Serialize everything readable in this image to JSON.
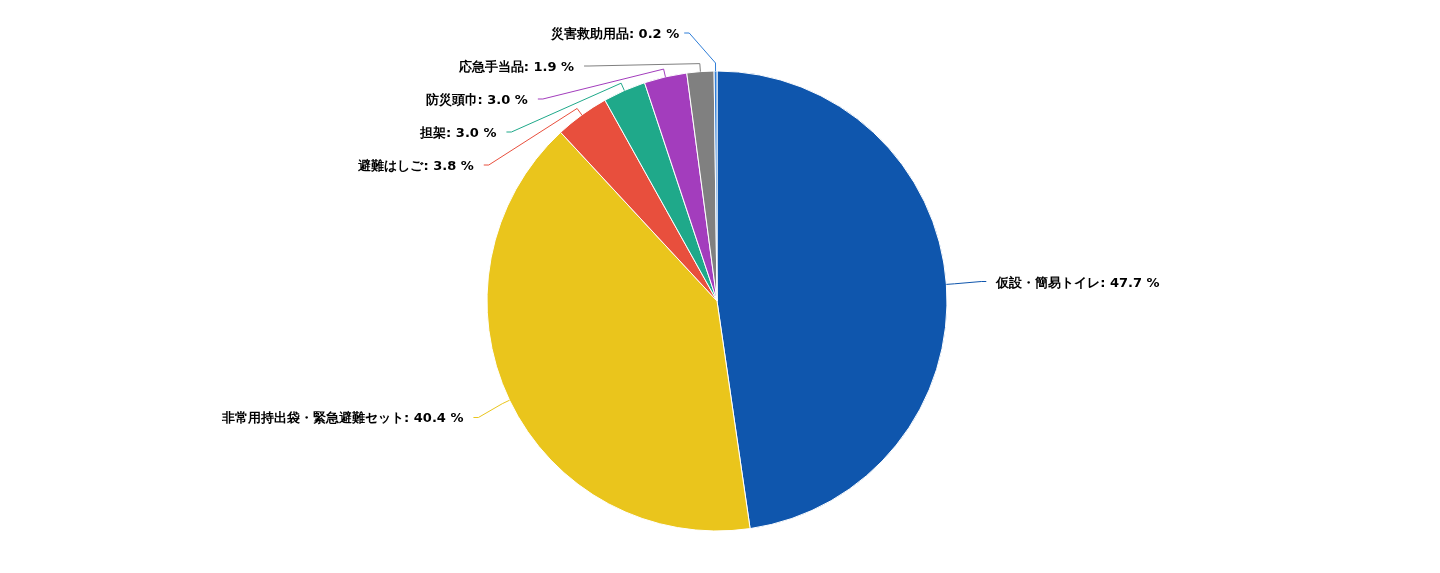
{
  "chart_data": {
    "type": "pie",
    "categories": [
      "仮設・簡易トイレ",
      "非常用持出袋・緊急避難セット",
      "避難はしご",
      "担架",
      "防災頭巾",
      "応急手当品",
      "災害救助用品"
    ],
    "values": [
      47.7,
      40.4,
      3.8,
      3.0,
      3.0,
      1.9,
      0.2
    ],
    "value_labels": [
      ": 47.7 %",
      ": 40.4 %",
      ": 3.8 %",
      ": 3.0 %",
      ": 3.0 %",
      ": 1.9 %",
      ": 0.2 %"
    ],
    "colors": [
      "#0f56ad",
      "#eac51c",
      "#e84f3d",
      "#1fa98a",
      "#a33dbd",
      "#808080",
      "#2f7ed8"
    ]
  }
}
